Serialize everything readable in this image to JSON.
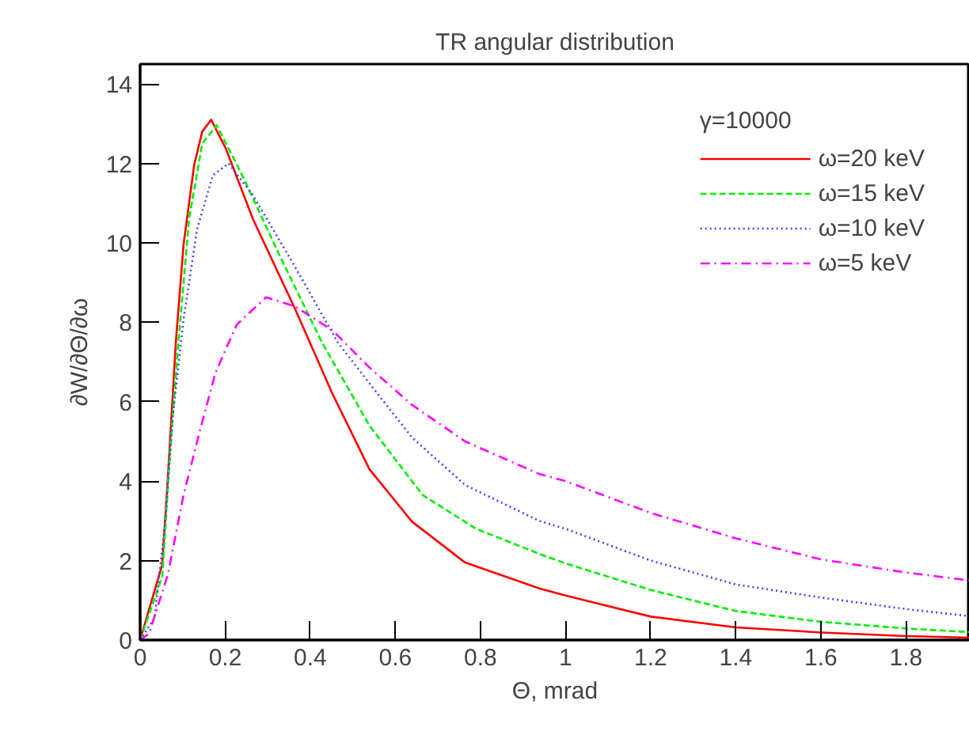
{
  "chart_data": {
    "type": "line",
    "title": "TR angular distribution",
    "xlabel": "Θ, mrad",
    "ylabel": "∂W/∂Θ/∂ω",
    "legend_title": "γ=10000",
    "legend": "top right",
    "grid": false,
    "xlim": [
      0,
      1.95
    ],
    "ylim": [
      0,
      14.5
    ],
    "xticks": [
      0,
      0.2,
      0.4,
      0.6,
      0.8,
      1,
      1.2,
      1.4,
      1.6,
      1.8
    ],
    "yticks": [
      0,
      2,
      4,
      6,
      8,
      10,
      12,
      14
    ],
    "series": [
      {
        "name": "ω=20 keV",
        "color": "#ff0000",
        "line_style": "solid",
        "x": [
          0,
          0.052,
          0.065,
          0.084,
          0.102,
          0.127,
          0.146,
          0.167,
          0.202,
          0.265,
          0.364,
          0.452,
          0.539,
          0.639,
          0.764,
          0.938,
          1.0,
          1.2,
          1.4,
          1.6,
          1.8,
          1.95
        ],
        "values": [
          0,
          1.9,
          4.05,
          7.5,
          9.95,
          11.96,
          12.8,
          13.1,
          12.36,
          10.6,
          8.34,
          6.2,
          4.3,
          2.98,
          1.95,
          1.3,
          1.12,
          0.59,
          0.32,
          0.19,
          0.1,
          0.06
        ]
      },
      {
        "name": "ω=15 keV",
        "color": "#00ee00",
        "line_style": "dashed",
        "x": [
          0,
          0.052,
          0.071,
          0.09,
          0.115,
          0.146,
          0.18,
          0.24,
          0.327,
          0.427,
          0.539,
          0.664,
          0.79,
          0.938,
          1.0,
          1.2,
          1.4,
          1.6,
          1.8,
          1.95
        ],
        "values": [
          0,
          1.6,
          4.85,
          7.5,
          10.6,
          12.5,
          12.96,
          11.7,
          9.7,
          7.5,
          5.4,
          3.65,
          2.8,
          2.17,
          1.93,
          1.26,
          0.73,
          0.46,
          0.29,
          0.2
        ]
      },
      {
        "name": "ω=10 keV",
        "color": "#4040ff",
        "line_style": "dotted",
        "x": [
          0,
          0.034,
          0.059,
          0.077,
          0.102,
          0.134,
          0.171,
          0.208,
          0.265,
          0.364,
          0.464,
          0.539,
          0.639,
          0.764,
          0.938,
          1.0,
          1.2,
          1.4,
          1.6,
          1.8,
          1.95
        ],
        "values": [
          0,
          0.56,
          2.98,
          5.66,
          8.07,
          10.35,
          11.7,
          12.0,
          11.2,
          9.4,
          7.5,
          6.46,
          5.1,
          3.9,
          3.0,
          2.8,
          2.0,
          1.4,
          1.07,
          0.78,
          0.6
        ]
      },
      {
        "name": "ω=5 keV",
        "color": "#ff00ff",
        "line_style": "dashdot",
        "x": [
          0,
          0.021,
          0.065,
          0.102,
          0.14,
          0.177,
          0.227,
          0.296,
          0.364,
          0.452,
          0.539,
          0.639,
          0.764,
          0.938,
          1.0,
          1.2,
          1.4,
          1.6,
          1.8,
          1.95
        ],
        "values": [
          0,
          0.16,
          1.64,
          3.65,
          5.25,
          6.73,
          7.94,
          8.63,
          8.4,
          7.8,
          6.86,
          5.92,
          5.0,
          4.18,
          4.0,
          3.2,
          2.56,
          2.03,
          1.7,
          1.5
        ]
      }
    ]
  }
}
